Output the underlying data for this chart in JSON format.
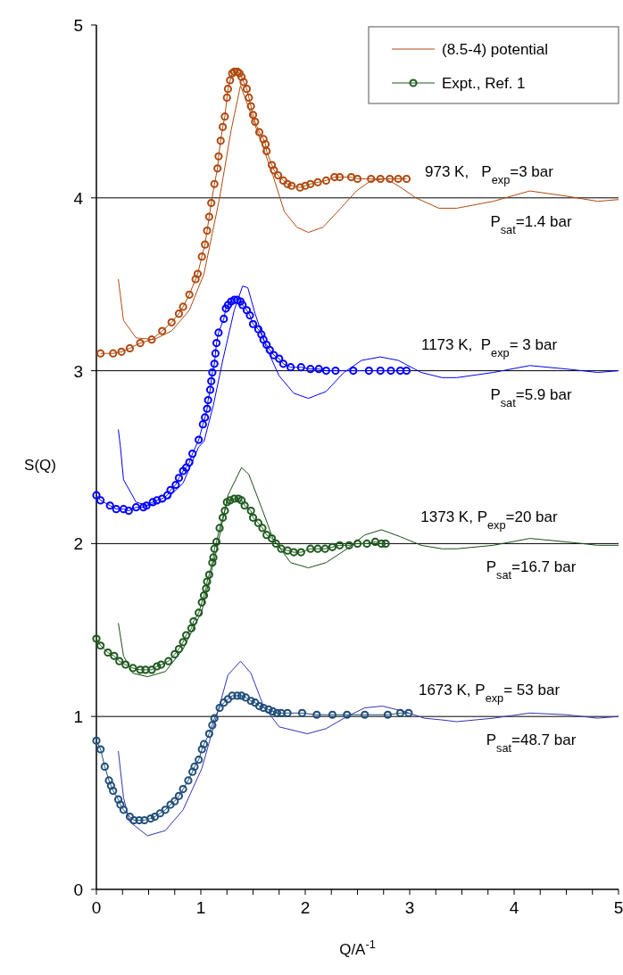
{
  "chart_data": {
    "type": "line",
    "xlabel": "Q/A$^{-1}$",
    "ylabel": "S(Q)",
    "xlim": [
      0,
      5
    ],
    "ylim": [
      0,
      5
    ],
    "xticks": [
      0,
      {
        "value": 0.25,
        "label": null
      },
      {
        "value": 0.5,
        "label": null
      },
      {
        "value": 0.75,
        "label": null
      },
      1,
      {
        "value": 1.25,
        "label": null
      },
      {
        "value": 1.5,
        "label": null
      },
      {
        "value": 1.75,
        "label": null
      },
      2,
      {
        "value": 2.25,
        "label": null
      },
      {
        "value": 2.5,
        "label": null
      },
      {
        "value": 2.75,
        "label": null
      },
      3,
      {
        "value": 3.25,
        "label": null
      },
      {
        "value": 3.5,
        "label": null
      },
      {
        "value": 3.75,
        "label": null
      },
      4,
      {
        "value": 4.25,
        "label": null
      },
      {
        "value": 4.5,
        "label": null
      },
      {
        "value": 4.75,
        "label": null
      },
      5
    ],
    "yticks": [
      0,
      1,
      2,
      3,
      4,
      5
    ],
    "grid": false,
    "legend": "top right",
    "line_style": "solid",
    "ref_lines": [
      {
        "axis": "y",
        "value": 1,
        "color": "#000000"
      },
      {
        "axis": "y",
        "value": 2,
        "color": "#000000"
      },
      {
        "axis": "y",
        "value": 3,
        "color": "#000000"
      },
      {
        "axis": "y",
        "value": 4,
        "color": "#000000"
      }
    ],
    "annotations": [
      "973 K,   P$_{exp}$=3 bar",
      "P$_{sat}$=1.4 bar",
      "1173 K,  P$_{exp}$= 3 bar",
      "P$_{sat}$=5.9 bar",
      "1373 K, P$_{exp}$=20 bar",
      "P$_{sat}$=16.7 bar",
      "1673 K, P$_{exp}$= 53 bar",
      "P$_{sat}$=48.7 bar"
    ],
    "series": [
      {
        "name": "(8.5-4) potential",
        "color": "#b04a10",
        "marker": "none",
        "x": [
          0.21,
          0.26,
          0.38,
          0.55,
          0.72,
          0.89,
          1.03,
          1.18,
          1.29,
          1.38,
          1.58,
          1.69,
          1.8,
          1.92,
          2.03,
          2.17,
          2.34,
          2.49,
          2.63,
          2.77,
          2.89,
          3.06,
          3.28,
          3.45,
          3.8,
          4.15,
          4.5,
          4.8,
          5
        ],
        "values": [
          3.53,
          3.29,
          3.19,
          3.18,
          3.23,
          3.35,
          3.56,
          4.0,
          4.39,
          4.65,
          4.32,
          4.13,
          3.92,
          3.83,
          3.8,
          3.83,
          3.94,
          4.04,
          4.1,
          4.11,
          4.07,
          4.0,
          3.94,
          3.94,
          3.98,
          4.04,
          4.01,
          3.98,
          3.99
        ]
      },
      {
        "color": "#0000ff",
        "marker": "none",
        "x": [
          0.21,
          0.23,
          0.26,
          0.38,
          0.49,
          0.66,
          0.83,
          0.98,
          1.03,
          1.12,
          1.21,
          1.32,
          1.4,
          1.45,
          1.52,
          1.63,
          1.75,
          1.89,
          2.03,
          2.2,
          2.37,
          2.54,
          2.72,
          2.89,
          3.11,
          3.31,
          3.45,
          3.8,
          4.15,
          4.5,
          4.8,
          5
        ],
        "values": [
          2.66,
          2.56,
          2.37,
          2.24,
          2.22,
          2.25,
          2.35,
          2.56,
          2.59,
          2.8,
          3.06,
          3.35,
          3.49,
          3.48,
          3.33,
          3.13,
          2.97,
          2.87,
          2.84,
          2.88,
          2.99,
          3.06,
          3.08,
          3.06,
          2.99,
          2.96,
          2.96,
          2.99,
          3.03,
          3.01,
          2.99,
          3.0
        ]
      },
      {
        "color": "#1a4d1a",
        "marker": "none",
        "x": [
          0.21,
          0.26,
          0.35,
          0.49,
          0.66,
          0.83,
          1.01,
          1.15,
          1.26,
          1.39,
          1.46,
          1.58,
          1.69,
          1.86,
          2.03,
          2.2,
          2.4,
          2.57,
          2.73,
          2.91,
          3.11,
          3.31,
          3.45,
          3.8,
          4.15,
          4.5,
          4.8,
          5
        ],
        "values": [
          1.54,
          1.35,
          1.25,
          1.23,
          1.26,
          1.39,
          1.61,
          1.96,
          2.28,
          2.44,
          2.4,
          2.21,
          2.03,
          1.89,
          1.86,
          1.89,
          1.97,
          2.05,
          2.08,
          2.04,
          1.99,
          1.97,
          1.97,
          1.99,
          2.03,
          2.01,
          1.99,
          1.99
        ]
      },
      {
        "color": "#3333b0",
        "marker": "none",
        "x": [
          0.21,
          0.26,
          0.32,
          0.49,
          0.66,
          0.83,
          1.01,
          1.15,
          1.26,
          1.38,
          1.48,
          1.6,
          1.75,
          2.02,
          2.2,
          2.4,
          2.57,
          2.74,
          2.94,
          3.14,
          3.31,
          3.45,
          3.8,
          4.15,
          4.5,
          4.8,
          5
        ],
        "values": [
          0.8,
          0.53,
          0.39,
          0.31,
          0.34,
          0.46,
          0.7,
          1.0,
          1.24,
          1.32,
          1.25,
          1.06,
          0.94,
          0.9,
          0.93,
          1.0,
          1.05,
          1.06,
          1.03,
          0.99,
          0.98,
          0.97,
          0.99,
          1.02,
          1.01,
          0.99,
          1.0
        ]
      },
      {
        "color": "#b04a10",
        "marker": "circle",
        "x": [
          0.04,
          0.16,
          0.24,
          0.32,
          0.42,
          0.53,
          0.63,
          0.72,
          0.79,
          0.83,
          0.89,
          0.95,
          0.97,
          1.01,
          1.04,
          1.06,
          1.08,
          1.1,
          1.13,
          1.16,
          1.17,
          1.19,
          1.21,
          1.23,
          1.25,
          1.26,
          1.28,
          1.3,
          1.32,
          1.35,
          1.37,
          1.39,
          1.41,
          1.44,
          1.46,
          1.48,
          1.5,
          1.52,
          1.56,
          1.6,
          1.62,
          1.63,
          1.68,
          1.7,
          1.74,
          1.79,
          1.83,
          1.87,
          1.95,
          2.0,
          2.05,
          2.12,
          2.2,
          2.28,
          2.33,
          2.44,
          2.5,
          2.63,
          2.72,
          2.81,
          2.89,
          2.97
        ],
        "values": [
          3.1,
          3.1,
          3.11,
          3.13,
          3.16,
          3.18,
          3.23,
          3.28,
          3.33,
          3.37,
          3.44,
          3.53,
          3.56,
          3.66,
          3.73,
          3.81,
          3.89,
          3.97,
          4.08,
          4.17,
          4.24,
          4.33,
          4.41,
          4.47,
          4.58,
          4.63,
          4.68,
          4.72,
          4.73,
          4.73,
          4.72,
          4.7,
          4.67,
          4.63,
          4.58,
          4.53,
          4.48,
          4.44,
          4.38,
          4.34,
          4.31,
          4.27,
          4.19,
          4.16,
          4.13,
          4.1,
          4.08,
          4.07,
          4.06,
          4.07,
          4.08,
          4.09,
          4.1,
          4.12,
          4.12,
          4.12,
          4.11,
          4.11,
          4.11,
          4.11,
          4.11,
          4.11
        ]
      },
      {
        "color": "#0000ff",
        "marker": "circle",
        "x": [
          0.0,
          0.04,
          0.13,
          0.19,
          0.26,
          0.31,
          0.38,
          0.45,
          0.48,
          0.54,
          0.58,
          0.63,
          0.68,
          0.71,
          0.76,
          0.79,
          0.83,
          0.86,
          0.89,
          0.92,
          0.98,
          1.02,
          1.04,
          1.06,
          1.07,
          1.09,
          1.1,
          1.11,
          1.13,
          1.14,
          1.15,
          1.17,
          1.22,
          1.24,
          1.26,
          1.29,
          1.32,
          1.35,
          1.38,
          1.4,
          1.44,
          1.47,
          1.5,
          1.55,
          1.58,
          1.6,
          1.63,
          1.66,
          1.7,
          1.75,
          1.79,
          1.86,
          1.96,
          2.05,
          2.13,
          2.2,
          2.29,
          2.46,
          2.61,
          2.72,
          2.82,
          2.91,
          2.97
        ],
        "values": [
          2.28,
          2.25,
          2.22,
          2.2,
          2.2,
          2.19,
          2.21,
          2.21,
          2.22,
          2.24,
          2.25,
          2.26,
          2.28,
          2.31,
          2.34,
          2.38,
          2.42,
          2.44,
          2.47,
          2.52,
          2.6,
          2.69,
          2.73,
          2.78,
          2.83,
          2.89,
          2.94,
          2.99,
          3.04,
          3.1,
          3.16,
          3.22,
          3.3,
          3.36,
          3.38,
          3.4,
          3.41,
          3.41,
          3.4,
          3.38,
          3.35,
          3.32,
          3.27,
          3.24,
          3.21,
          3.18,
          3.15,
          3.12,
          3.09,
          3.07,
          3.04,
          3.02,
          3.02,
          3.01,
          3.01,
          3.0,
          3.0,
          3.0,
          3.0,
          3.0,
          3.0,
          3.0,
          3.0
        ]
      },
      {
        "name": "Expt., Ref. 1",
        "color": "#1e5a1e",
        "marker": "circle",
        "x": [
          0.0,
          0.04,
          0.11,
          0.17,
          0.22,
          0.28,
          0.35,
          0.42,
          0.47,
          0.53,
          0.58,
          0.62,
          0.69,
          0.75,
          0.79,
          0.83,
          0.86,
          0.91,
          0.93,
          0.98,
          1.01,
          1.03,
          1.05,
          1.06,
          1.08,
          1.11,
          1.12,
          1.13,
          1.15,
          1.18,
          1.21,
          1.23,
          1.25,
          1.28,
          1.32,
          1.36,
          1.39,
          1.42,
          1.48,
          1.5,
          1.55,
          1.59,
          1.63,
          1.68,
          1.72,
          1.77,
          1.83,
          1.89,
          1.96,
          2.05,
          2.12,
          2.19,
          2.26,
          2.33,
          2.42,
          2.5,
          2.59,
          2.67,
          2.73,
          2.77
        ],
        "values": [
          1.45,
          1.41,
          1.37,
          1.35,
          1.32,
          1.3,
          1.28,
          1.27,
          1.27,
          1.27,
          1.29,
          1.3,
          1.32,
          1.36,
          1.39,
          1.43,
          1.47,
          1.51,
          1.55,
          1.6,
          1.66,
          1.7,
          1.74,
          1.78,
          1.82,
          1.89,
          1.92,
          1.97,
          2.01,
          2.09,
          2.15,
          2.19,
          2.24,
          2.25,
          2.26,
          2.26,
          2.25,
          2.22,
          2.19,
          2.15,
          2.12,
          2.09,
          2.05,
          2.03,
          2.0,
          1.97,
          1.96,
          1.95,
          1.95,
          1.97,
          1.97,
          1.97,
          1.98,
          1.99,
          1.99,
          2.0,
          2.0,
          2.01,
          2.0,
          2.0
        ]
      },
      {
        "color": "#1f4e79",
        "marker": "circle",
        "x": [
          0.0,
          0.04,
          0.08,
          0.12,
          0.14,
          0.16,
          0.21,
          0.23,
          0.26,
          0.32,
          0.36,
          0.41,
          0.46,
          0.52,
          0.56,
          0.61,
          0.66,
          0.71,
          0.75,
          0.79,
          0.83,
          0.88,
          0.92,
          0.94,
          0.98,
          1.01,
          1.03,
          1.08,
          1.11,
          1.13,
          1.18,
          1.22,
          1.26,
          1.3,
          1.35,
          1.39,
          1.43,
          1.48,
          1.52,
          1.56,
          1.6,
          1.65,
          1.69,
          1.73,
          1.77,
          1.83,
          1.97,
          2.11,
          2.26,
          2.4,
          2.57,
          2.79,
          2.91,
          2.99
        ],
        "values": [
          0.86,
          0.81,
          0.71,
          0.63,
          0.6,
          0.57,
          0.52,
          0.49,
          0.46,
          0.42,
          0.4,
          0.4,
          0.4,
          0.41,
          0.42,
          0.44,
          0.46,
          0.49,
          0.51,
          0.54,
          0.58,
          0.63,
          0.68,
          0.71,
          0.75,
          0.81,
          0.84,
          0.9,
          0.95,
          0.99,
          1.05,
          1.08,
          1.1,
          1.12,
          1.12,
          1.12,
          1.11,
          1.09,
          1.08,
          1.06,
          1.05,
          1.04,
          1.03,
          1.02,
          1.02,
          1.02,
          1.02,
          1.01,
          1.01,
          1.01,
          1.01,
          1.01,
          1.02,
          1.02
        ]
      }
    ]
  }
}
